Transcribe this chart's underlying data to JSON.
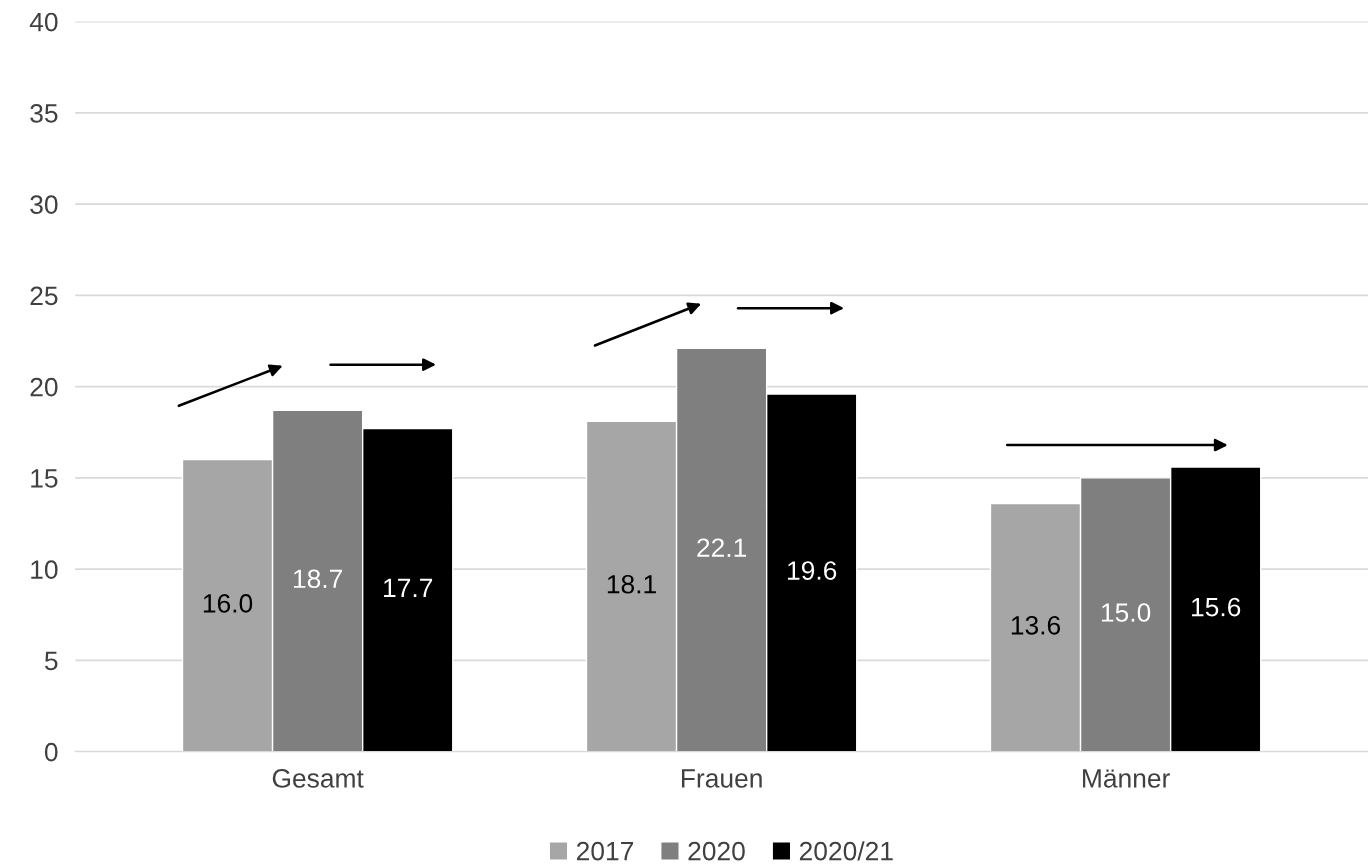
{
  "chart_data": {
    "type": "bar",
    "categories": [
      "Gesamt",
      "Frauen",
      "Männer"
    ],
    "series": [
      {
        "name": "2017",
        "color": "#a6a6a6",
        "values": [
          16.0,
          18.1,
          13.6
        ],
        "value_labels": [
          "16.0",
          "18.1",
          "13.6"
        ]
      },
      {
        "name": "2020",
        "color": "#7f7f7f",
        "values": [
          18.7,
          22.1,
          15.0
        ],
        "value_labels": [
          "18.7",
          "22.1",
          "15.0"
        ]
      },
      {
        "name": "2020/21",
        "color": "#000000",
        "values": [
          17.7,
          19.6,
          15.6
        ],
        "value_labels": [
          "17.7",
          "19.6",
          "15.6"
        ]
      }
    ],
    "ylim": [
      0,
      40
    ],
    "yticks": [
      0,
      5,
      10,
      15,
      20,
      25,
      30,
      35,
      40
    ],
    "grid": "y",
    "legend": "bottom"
  }
}
